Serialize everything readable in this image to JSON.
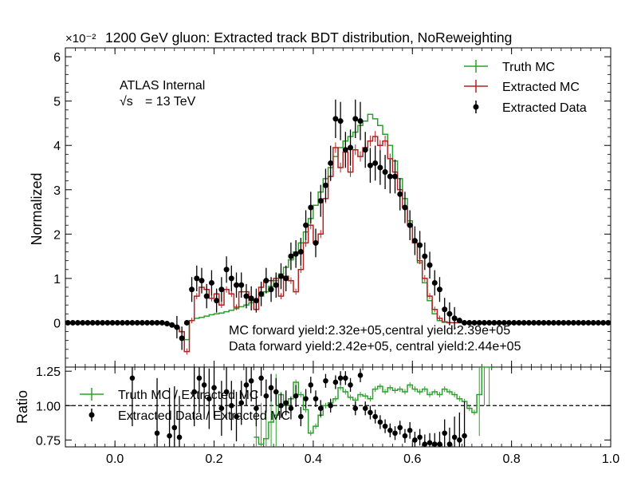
{
  "chart_data": {
    "type": "line",
    "title": "1200 GeV gluon: Extracted track BDT distribution, NoReweighting",
    "scale_label": "×10⁻²",
    "ylabel": "Normalized",
    "ratio_ylabel": "Ratio",
    "xlim": [
      -0.1,
      1.0
    ],
    "ylim": [
      -1.0,
      6.2
    ],
    "ratio_ylim": [
      0.7,
      1.28
    ],
    "x_ticks": [
      "0.0",
      "0.2",
      "0.4",
      "0.6",
      "0.8",
      "1.0"
    ],
    "y_ticks": [
      "0",
      "1",
      "2",
      "3",
      "4",
      "5",
      "6"
    ],
    "ratio_ticks": [
      "0.75",
      "1.00",
      "1.25"
    ],
    "annotations": {
      "experiment": "ATLAS Internal",
      "energy_sqrt": "√s",
      "energy_value": "= 13 TeV",
      "mc_yield": "MC forward yield:2.32e+05,central yield:2.39e+05",
      "data_yield": "Data forward yield:2.42e+05, central yield:2.44e+05"
    },
    "legend_position": "top-right",
    "legend": [
      "Truth MC",
      "Extracted MC",
      "Extracted Data"
    ],
    "ratio_legend": [
      "Truth MC / Extracted MC",
      "Extracted Data / Extracted MC"
    ],
    "colors": {
      "truth": "#2ca02c",
      "extracted": "#b22222",
      "data": "#000000"
    },
    "bin_width": 0.01,
    "bin_start": -0.1,
    "truth_mc": [
      0,
      0,
      0,
      0,
      0,
      0,
      0,
      0,
      0,
      0,
      0,
      0,
      0,
      0,
      0,
      0,
      0,
      0,
      0,
      0,
      -0.02,
      -0.05,
      -0.1,
      -0.2,
      -0.38,
      0.05,
      0.1,
      0.12,
      0.15,
      0.18,
      0.2,
      0.22,
      0.25,
      0.28,
      0.32,
      0.36,
      0.4,
      0.45,
      0.5,
      0.6,
      0.7,
      0.82,
      0.95,
      1.1,
      1.25,
      1.42,
      1.6,
      1.8,
      2.05,
      2.35,
      2.65,
      2.95,
      3.25,
      3.5,
      3.75,
      3.95,
      4.1,
      4.2,
      4.3,
      4.45,
      4.55,
      4.7,
      4.6,
      4.45,
      4.25,
      4.0,
      3.65,
      3.25,
      2.8,
      2.3,
      1.8,
      1.35,
      0.9,
      0.5,
      0.2,
      0.05,
      0.01,
      0,
      0,
      0,
      0,
      0,
      0,
      0,
      0,
      0,
      0,
      0,
      0,
      0,
      0,
      0,
      0,
      0,
      0,
      0,
      0,
      0,
      0,
      0,
      0,
      0,
      0,
      0,
      0,
      0,
      0,
      0,
      0,
      0
    ],
    "extracted_mc": [
      0,
      0,
      0,
      0,
      0,
      0,
      0,
      0,
      0,
      0,
      0,
      0,
      0,
      0,
      0,
      0,
      0,
      0,
      0,
      0,
      -0.02,
      -0.05,
      -0.1,
      -0.2,
      -0.65,
      0.05,
      0.6,
      0.8,
      0.75,
      0.55,
      0.65,
      0.4,
      0.75,
      0.65,
      0.35,
      0.7,
      0.7,
      0.5,
      0.3,
      0.8,
      0.95,
      0.95,
      1.0,
      0.6,
      1.05,
      0.95,
      0.7,
      1.2,
      1.8,
      2.2,
      1.8,
      2.0,
      2.8,
      3.3,
      3.95,
      3.5,
      3.85,
      3.4,
      3.9,
      3.75,
      3.95,
      4.1,
      4.2,
      4.0,
      4.1,
      3.7,
      3.4,
      3.0,
      2.6,
      2.2,
      1.8,
      1.4,
      1.0,
      0.6,
      0.3,
      0.1,
      0.02,
      0,
      0,
      0,
      0,
      0,
      0,
      0,
      0,
      0,
      0,
      0,
      0,
      0,
      0,
      0,
      0,
      0,
      0,
      0,
      0,
      0,
      0,
      0,
      0,
      0,
      0,
      0,
      0,
      0,
      0,
      0,
      0,
      0
    ],
    "data_x": [
      -0.095,
      -0.085,
      -0.075,
      -0.065,
      -0.055,
      -0.045,
      -0.035,
      -0.025,
      -0.015,
      -0.005,
      0.005,
      0.015,
      0.025,
      0.035,
      0.045,
      0.055,
      0.065,
      0.075,
      0.085,
      0.095,
      0.105,
      0.115,
      0.125,
      0.135,
      0.145,
      0.155,
      0.165,
      0.175,
      0.185,
      0.195,
      0.205,
      0.215,
      0.225,
      0.235,
      0.245,
      0.255,
      0.265,
      0.275,
      0.285,
      0.295,
      0.305,
      0.315,
      0.325,
      0.335,
      0.345,
      0.355,
      0.365,
      0.375,
      0.385,
      0.395,
      0.405,
      0.415,
      0.425,
      0.435,
      0.445,
      0.455,
      0.465,
      0.475,
      0.485,
      0.495,
      0.505,
      0.515,
      0.525,
      0.535,
      0.545,
      0.555,
      0.565,
      0.575,
      0.585,
      0.595,
      0.605,
      0.615,
      0.625,
      0.635,
      0.645,
      0.655,
      0.665,
      0.675,
      0.685,
      0.695,
      0.705,
      0.715,
      0.725,
      0.735,
      0.745,
      0.755,
      0.765,
      0.775,
      0.785,
      0.795,
      0.805,
      0.815,
      0.825,
      0.835,
      0.845,
      0.855,
      0.865,
      0.875,
      0.885,
      0.895,
      0.905,
      0.915,
      0.925,
      0.935,
      0.945,
      0.955,
      0.965,
      0.975,
      0.985,
      0.995
    ],
    "data_y": [
      0,
      0,
      0,
      0,
      0,
      0,
      0,
      0,
      0,
      0,
      0,
      0,
      0,
      0,
      0,
      0,
      0,
      0,
      0,
      0,
      -0.02,
      -0.05,
      -0.1,
      -0.35,
      0.0,
      0.75,
      1.0,
      0.95,
      0.6,
      0.9,
      0.5,
      0.75,
      1.2,
      1.0,
      0.85,
      0.85,
      0.6,
      0.55,
      0.5,
      0.65,
      0.95,
      0.75,
      0.85,
      1.05,
      1.0,
      1.5,
      1.55,
      1.6,
      2.2,
      2.6,
      1.8,
      2.75,
      3.1,
      3.6,
      4.6,
      4.55,
      3.9,
      3.95,
      4.6,
      4.55,
      3.9,
      3.55,
      3.6,
      3.5,
      3.4,
      3.3,
      3.3,
      2.9,
      2.6,
      2.2,
      1.85,
      1.75,
      1.5,
      1.3,
      0.9,
      0.75,
      0.3,
      0.2,
      0.1,
      0.05,
      0,
      0,
      0,
      0,
      0,
      0,
      0,
      0,
      0,
      0,
      0,
      0,
      0,
      0,
      0,
      0,
      0,
      0,
      0,
      0,
      0,
      0,
      0,
      0,
      0,
      0,
      0,
      0,
      0,
      0
    ],
    "truth_ratio_x": [
      0.28,
      0.29,
      0.3,
      0.31,
      0.32,
      0.33,
      0.34,
      0.35,
      0.36,
      0.37,
      0.38,
      0.39,
      0.4,
      0.41,
      0.42,
      0.43,
      0.44,
      0.45,
      0.46,
      0.47,
      0.48,
      0.49,
      0.5,
      0.51,
      0.52,
      0.53,
      0.54,
      0.55,
      0.56,
      0.57,
      0.58,
      0.59,
      0.6,
      0.61,
      0.62,
      0.63,
      0.64,
      0.65,
      0.66,
      0.67,
      0.68,
      0.69,
      0.7,
      0.71,
      0.72,
      0.73,
      0.74,
      0.75
    ],
    "truth_ratio_y": [
      0.77,
      0.72,
      0.76,
      0.88,
      0.93,
      1.08,
      1.0,
      1.05,
      1.17,
      1.08,
      0.97,
      0.8,
      0.85,
      0.93,
      1.0,
      1.02,
      1.05,
      1.13,
      1.1,
      1.06,
      1.04,
      1.08,
      1.07,
      1.05,
      1.12,
      1.14,
      1.1,
      1.13,
      1.11,
      1.12,
      1.1,
      1.15,
      1.12,
      1.1,
      1.12,
      1.08,
      1.1,
      1.08,
      1.12,
      1.1,
      1.08,
      1.05,
      1.03,
      0.98,
      0.95,
      1.08,
      1.3,
      1.3
    ],
    "data_ratio_x": [
      0.035,
      0.085,
      0.11,
      0.12,
      0.13,
      0.16,
      0.17,
      0.18,
      0.19,
      0.2,
      0.215,
      0.225,
      0.235,
      0.245,
      0.255,
      0.265,
      0.275,
      0.285,
      0.295,
      0.305,
      0.315,
      0.325,
      0.335,
      0.345,
      0.355,
      0.365,
      0.375,
      0.385,
      0.395,
      0.405,
      0.415,
      0.425,
      0.435,
      0.445,
      0.455,
      0.465,
      0.475,
      0.485,
      0.495,
      0.505,
      0.515,
      0.525,
      0.535,
      0.545,
      0.555,
      0.565,
      0.575,
      0.585,
      0.595,
      0.605,
      0.615,
      0.625,
      0.635,
      0.645,
      0.655,
      0.665,
      0.675,
      0.685,
      0.695,
      0.705
    ],
    "data_ratio_y": [
      1.2,
      0.8,
      0.78,
      0.84,
      0.77,
      1.1,
      1.2,
      1.15,
      1.05,
      1.13,
      0.98,
      1.1,
      1.0,
      0.92,
      1.02,
      1.15,
      1.18,
      0.98,
      1.2,
      1.07,
      1.13,
      1.1,
      1.0,
      1.02,
      0.98,
      1.07,
      0.92,
      1.05,
      1.15,
      1.05,
      0.98,
      1.18,
      1.0,
      1.17,
      1.2,
      1.2,
      1.15,
      0.98,
      1.22,
      0.98,
      0.95,
      0.92,
      0.88,
      0.85,
      0.82,
      0.8,
      0.84,
      0.78,
      0.82,
      0.75,
      0.77,
      0.72,
      0.73,
      0.72,
      0.72,
      0.8,
      0.72,
      0.77,
      0.75,
      0.78
    ],
    "data_ratio_err": [
      0.35,
      0.4,
      0.35,
      0.3,
      0.3,
      0.25,
      0.25,
      0.25,
      0.22,
      0.22,
      0.2,
      0.2,
      0.18,
      0.18,
      0.16,
      0.15,
      0.15,
      0.13,
      0.13,
      0.12,
      0.1,
      0.1,
      0.09,
      0.09,
      0.08,
      0.08,
      0.07,
      0.07,
      0.06,
      0.06,
      0.06,
      0.05,
      0.05,
      0.05,
      0.05,
      0.05,
      0.05,
      0.05,
      0.05,
      0.05,
      0.05,
      0.05,
      0.05,
      0.05,
      0.05,
      0.05,
      0.05,
      0.05,
      0.06,
      0.06,
      0.06,
      0.07,
      0.07,
      0.08,
      0.09,
      0.1,
      0.12,
      0.15,
      0.2,
      0.25
    ]
  }
}
